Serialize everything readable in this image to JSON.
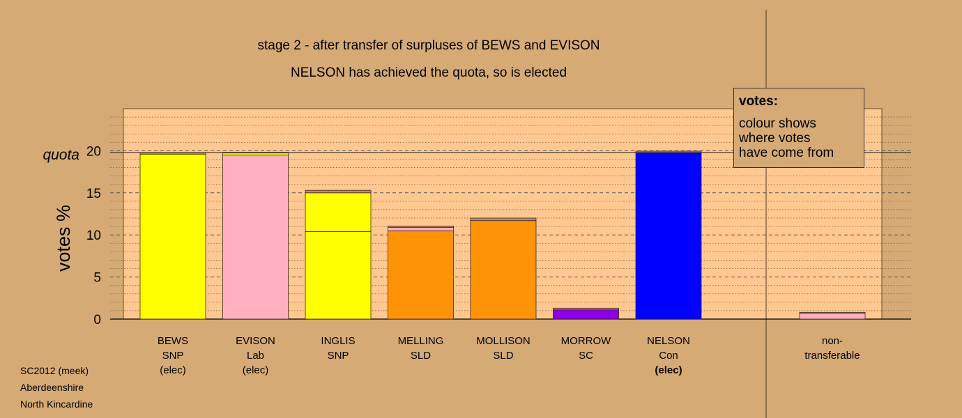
{
  "title_line1": "stage 2 - after transfer of surpluses of BEWS and EVISON",
  "title_line2": "NELSON has achieved the quota, so is elected",
  "legend": {
    "title": "votes:",
    "text": "colour shows\nwhere votes\nhave come from"
  },
  "footer": {
    "line1": "SC2012 (meek)",
    "line2": "Aberdeenshire",
    "line3": "North Kincardine"
  },
  "chart_data": {
    "type": "bar",
    "stacked": true,
    "ylabel": "votes %",
    "ylim": [
      0,
      25
    ],
    "yticks": [
      0,
      5,
      10,
      15,
      20
    ],
    "quota": 19.8,
    "quota_label": "quota",
    "colors": {
      "SNP": "#ffff00",
      "Lab": "#ffb0c0",
      "SLD": "#ff9308",
      "SC": "#8b00e6",
      "Con": "#0000ff",
      "Transfer": "#c58a62"
    },
    "candidates": [
      {
        "name": "BEWS",
        "party": "SNP",
        "status": "(elec)",
        "status_bold": false,
        "segments": [
          {
            "source": "SNP",
            "value": 19.6
          },
          {
            "source": "Transfer",
            "value": 0.2
          }
        ]
      },
      {
        "name": "EVISON",
        "party": "Lab",
        "status": "(elec)",
        "status_bold": false,
        "segments": [
          {
            "source": "Lab",
            "value": 19.5
          },
          {
            "source": "SNP",
            "value": 0.25
          },
          {
            "source": "Transfer",
            "value": 0.05
          }
        ]
      },
      {
        "name": "INGLIS",
        "party": "SNP",
        "status": "",
        "status_bold": false,
        "segments": [
          {
            "source": "SNP",
            "value": 10.4
          },
          {
            "source": "SNP",
            "value": 4.6
          },
          {
            "source": "Transfer",
            "value": 0.3
          }
        ]
      },
      {
        "name": "MELLING",
        "party": "SLD",
        "status": "",
        "status_bold": false,
        "segments": [
          {
            "source": "SLD",
            "value": 10.5
          },
          {
            "source": "Lab",
            "value": 0.4
          },
          {
            "source": "Transfer",
            "value": 0.15
          }
        ]
      },
      {
        "name": "MOLLISON",
        "party": "SLD",
        "status": "",
        "status_bold": false,
        "segments": [
          {
            "source": "SLD",
            "value": 11.7
          },
          {
            "source": "Transfer",
            "value": 0.3
          }
        ]
      },
      {
        "name": "MORROW",
        "party": "SC",
        "status": "",
        "status_bold": false,
        "segments": [
          {
            "source": "SC",
            "value": 1.1
          },
          {
            "source": "Transfer",
            "value": 0.2
          }
        ]
      },
      {
        "name": "NELSON",
        "party": "Con",
        "status": "(elec)",
        "status_bold": true,
        "segments": [
          {
            "source": "Con",
            "value": 19.8
          },
          {
            "source": "Transfer",
            "value": 0.15
          }
        ]
      }
    ],
    "non_transferable": {
      "label_line1": "non-",
      "label_line2": "transferable",
      "segments": [
        {
          "source": "Lab",
          "value": 0.7
        },
        {
          "source": "Transfer",
          "value": 0.1
        }
      ]
    }
  }
}
